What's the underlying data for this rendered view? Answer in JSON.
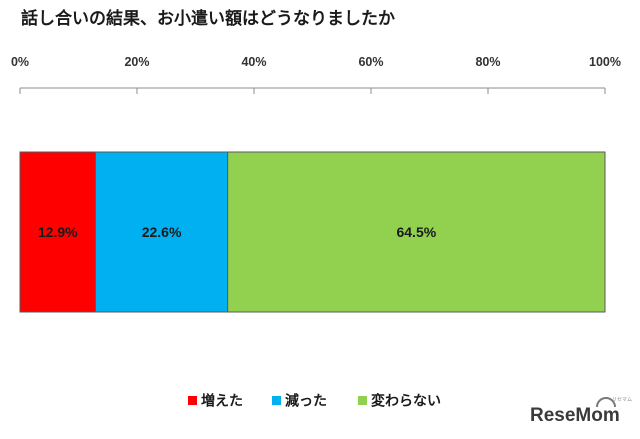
{
  "chart_data": {
    "type": "bar",
    "orientation": "horizontal",
    "stacked": true,
    "title": "話し合いの結果、お小遣い額はどうなりましたか",
    "xlim": [
      0,
      100
    ],
    "x_tick_labels": [
      "0%",
      "20%",
      "40%",
      "60%",
      "80%",
      "100%"
    ],
    "x_tick_values": [
      0,
      20,
      40,
      60,
      80,
      100
    ],
    "grid": false,
    "legend_position": "bottom",
    "series": [
      {
        "name": "増えた",
        "value": 12.9,
        "label": "12.9%",
        "color": "#ff0000"
      },
      {
        "name": "減った",
        "value": 22.6,
        "label": "22.6%",
        "color": "#00b0f0"
      },
      {
        "name": "変わらない",
        "value": 64.5,
        "label": "64.5%",
        "color": "#92d050"
      }
    ]
  },
  "watermark": {
    "text": "ReseMom",
    "sub": "リセマム",
    "icon": "resemom-logo-icon"
  }
}
